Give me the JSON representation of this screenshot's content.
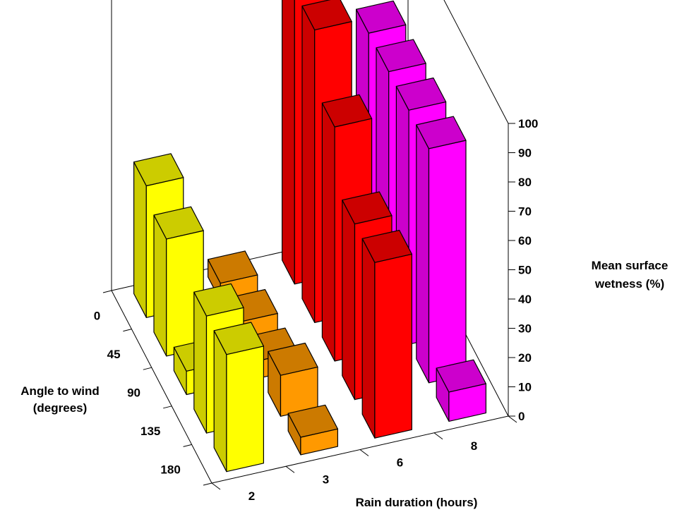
{
  "chart_data": {
    "type": "bar",
    "subtype": "3d-bar",
    "x_axis": {
      "label": "Rain duration (hours)",
      "categories": [
        "2",
        "3",
        "6",
        "8"
      ]
    },
    "y_axis": {
      "label": "Angle to wind (degrees)",
      "categories": [
        "0",
        "45",
        "90",
        "135",
        "180"
      ]
    },
    "z_axis": {
      "label_lines": [
        "Mean surface",
        "wetness (%)"
      ],
      "range": [
        0,
        100
      ],
      "ticks": [
        "0",
        "10",
        "20",
        "30",
        "40",
        "50",
        "60",
        "70",
        "80",
        "90",
        "100"
      ]
    },
    "colors": {
      "2": "#ffff00",
      "3": "#ff9900",
      "6": "#ff0000",
      "8": "#ff00ff"
    },
    "series": [
      {
        "name": "2",
        "values": [
          45,
          40,
          8,
          40,
          40
        ]
      },
      {
        "name": "3",
        "values": [
          6,
          6,
          6,
          14,
          6
        ]
      },
      {
        "name": "6",
        "values": [
          100,
          100,
          80,
          60,
          60
        ]
      },
      {
        "name": "8",
        "values": [
          80,
          80,
          80,
          80,
          10
        ]
      }
    ]
  }
}
